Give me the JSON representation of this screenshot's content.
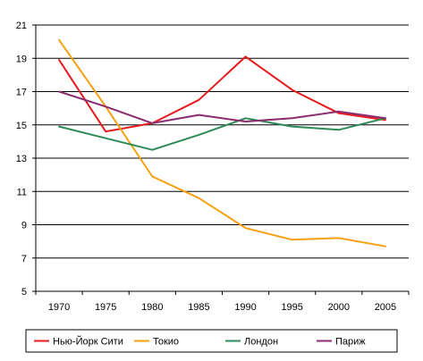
{
  "chart_data": {
    "type": "line",
    "title": "",
    "xlabel": "",
    "ylabel": "",
    "x": [
      "1970",
      "1975",
      "1980",
      "1985",
      "1990",
      "1995",
      "2000",
      "2005"
    ],
    "y_ticks": [
      "5",
      "7",
      "9",
      "11",
      "13",
      "15",
      "17",
      "19",
      "21"
    ],
    "ylim": [
      5,
      21
    ],
    "grid": "horizontal",
    "legend_position": "bottom",
    "series": [
      {
        "name": "Нью-Йорк Сити",
        "color": "#e41a1c",
        "values": [
          18.9,
          14.6,
          15.1,
          16.5,
          19.1,
          17.1,
          15.7,
          15.3
        ]
      },
      {
        "name": "Токио",
        "color": "#f5a00e",
        "values": [
          20.1,
          16.1,
          11.9,
          10.6,
          8.8,
          8.1,
          8.2,
          7.7
        ]
      },
      {
        "name": "Лондон",
        "color": "#2e8b57",
        "values": [
          14.9,
          14.2,
          13.5,
          14.4,
          15.4,
          14.9,
          14.7,
          15.4
        ]
      },
      {
        "name": "Париж",
        "color": "#8b2c6e",
        "values": [
          17.0,
          16.1,
          15.1,
          15.6,
          15.2,
          15.4,
          15.8,
          15.4
        ]
      }
    ]
  }
}
